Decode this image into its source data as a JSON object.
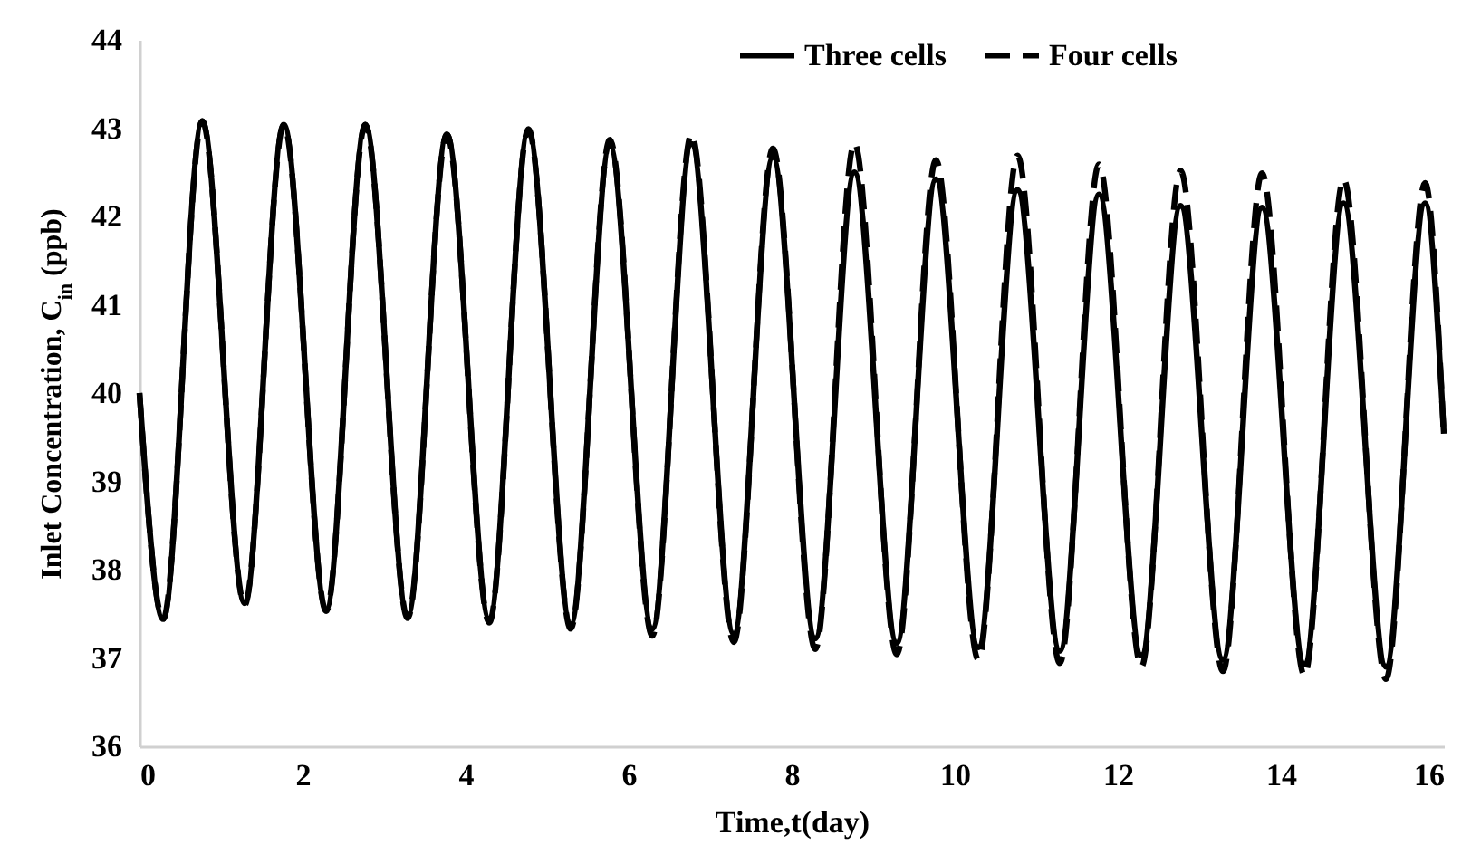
{
  "chart_data": {
    "type": "line",
    "xlabel": "Time,t(day)",
    "ylabel": "Inlet Concentration, C$_{in}$ (ppb)",
    "x": [
      0,
      0.29,
      0.77,
      1.29,
      1.77,
      2.29,
      2.77,
      3.29,
      3.77,
      4.29,
      4.77,
      5.29,
      5.77,
      6.29,
      6.77,
      7.29,
      7.77,
      8.29,
      8.77,
      9.29,
      9.77,
      10.29,
      10.77,
      11.29,
      11.77,
      12.29,
      12.77,
      13.29,
      13.77,
      14.29,
      14.77,
      15.29,
      15.77,
      16
    ],
    "series": [
      {
        "name": "Three cells",
        "color": "#000000",
        "line_style": "solid",
        "values": [
          40.0,
          37.44,
          43.08,
          37.62,
          43.04,
          37.55,
          43.04,
          37.48,
          42.93,
          37.44,
          42.97,
          37.38,
          42.8,
          37.33,
          42.82,
          37.27,
          42.67,
          37.22,
          42.5,
          37.17,
          42.42,
          37.12,
          42.3,
          37.08,
          42.25,
          37.03,
          42.12,
          36.98,
          42.1,
          36.93,
          42.15,
          36.9,
          42.15,
          39.54
        ]
      },
      {
        "name": "Four cells",
        "color": "#000000",
        "line_style": "dashed",
        "values": [
          40.0,
          37.44,
          43.08,
          37.6,
          43.04,
          37.53,
          43.04,
          37.45,
          42.93,
          37.4,
          42.99,
          37.33,
          42.87,
          37.25,
          42.93,
          37.18,
          42.77,
          37.1,
          42.83,
          37.04,
          42.64,
          36.98,
          42.69,
          36.94,
          42.59,
          36.9,
          42.52,
          36.85,
          42.49,
          36.8,
          42.42,
          36.76,
          42.38,
          39.5
        ]
      }
    ],
    "xlim": [
      0,
      16
    ],
    "xticks": [
      0,
      2,
      4,
      6,
      8,
      10,
      12,
      14,
      16
    ],
    "ylim": [
      36,
      44
    ],
    "yticks": [
      36,
      37,
      38,
      39,
      40,
      41,
      42,
      43,
      44
    ],
    "legend": "top right"
  }
}
